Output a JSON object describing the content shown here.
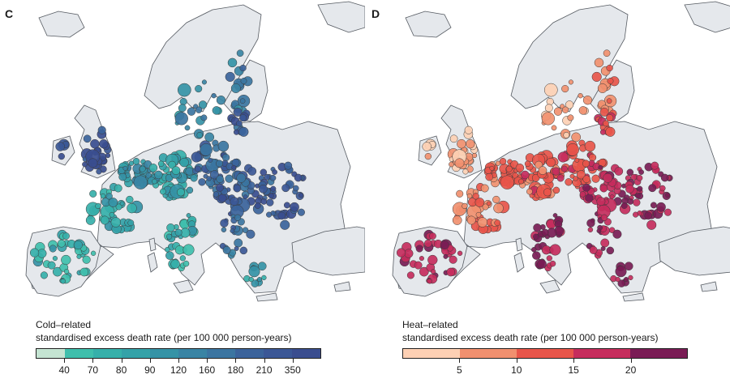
{
  "panels": [
    {
      "letter": "C",
      "legend": {
        "title_line1": "Cold–related",
        "title_line2": "standardised excess death rate (per 100 000 person-years)",
        "ticks": [
          "40",
          "70",
          "80",
          "90",
          "120",
          "160",
          "180",
          "210",
          "350"
        ],
        "colors": [
          "#c4e4d2",
          "#3fbfac",
          "#36b0aa",
          "#34a2a8",
          "#3593a6",
          "#3984a4",
          "#3b75a1",
          "#3b639b",
          "#3b5796",
          "#3a4d8f"
        ]
      }
    },
    {
      "letter": "D",
      "legend": {
        "title_line1": "Heat–related",
        "title_line2": "standardised excess death rate (per 100 000 person-years)",
        "ticks": [
          "5",
          "10",
          "15",
          "20"
        ],
        "colors": [
          "#fdd0b4",
          "#f1906f",
          "#e8554a",
          "#c62d5d",
          "#7a1c55"
        ]
      }
    }
  ],
  "map_colors": {
    "land": "#e5e8ec",
    "border": "#555a61",
    "water": "#ffffff"
  }
}
